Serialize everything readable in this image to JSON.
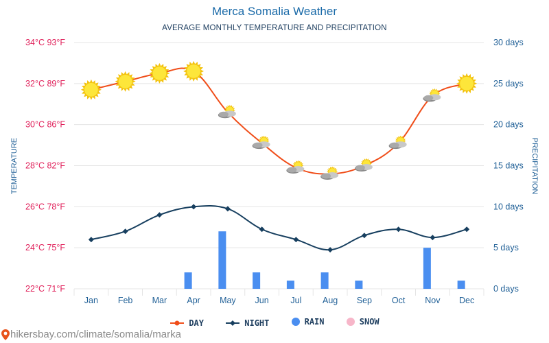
{
  "title": "Merca Somalia Weather",
  "subtitle": "AVERAGE MONTHLY TEMPERATURE AND PRECIPITATION",
  "footer": "hikersbay.com/climate/somalia/marka",
  "colors": {
    "day": "#f04e1a",
    "night": "#173f5f",
    "rain": "#4a8ef0",
    "snow": "#f7b6c9",
    "left_axis": "#e0205a",
    "right_axis": "#1f5f96",
    "grid": "#e4e4e4",
    "title": "#1a6aa8"
  },
  "legend": [
    {
      "label": "DAY",
      "key": "day",
      "marker": "line-dot"
    },
    {
      "label": "NIGHT",
      "key": "night",
      "marker": "line-diamond"
    },
    {
      "label": "RAIN",
      "key": "rain",
      "marker": "circle"
    },
    {
      "label": "SNOW",
      "key": "snow",
      "marker": "circle"
    }
  ],
  "chart_data": {
    "type": "line",
    "categories": [
      "Jan",
      "Feb",
      "Mar",
      "Apr",
      "May",
      "Jun",
      "Jul",
      "Aug",
      "Sep",
      "Oct",
      "Nov",
      "Dec"
    ],
    "series": [
      {
        "name": "DAY",
        "axis": "left",
        "values": [
          31.7,
          32.1,
          32.5,
          32.6,
          30.6,
          29.1,
          27.9,
          27.6,
          28.0,
          29.1,
          31.4,
          32.0
        ]
      },
      {
        "name": "NIGHT",
        "axis": "left",
        "values": [
          24.4,
          24.8,
          25.6,
          26.0,
          25.9,
          24.9,
          24.4,
          23.9,
          24.6,
          24.9,
          24.5,
          24.9
        ]
      },
      {
        "name": "RAIN",
        "axis": "right",
        "type": "bar",
        "values": [
          0,
          0,
          0,
          2,
          7,
          2,
          1,
          2,
          1,
          0,
          5,
          1
        ]
      },
      {
        "name": "SNOW",
        "axis": "right",
        "type": "bar",
        "values": [
          0,
          0,
          0,
          0,
          0,
          0,
          0,
          0,
          0,
          0,
          0,
          0
        ]
      }
    ],
    "weather_icons": [
      "sun",
      "sun",
      "sun",
      "sun",
      "partly-cloudy",
      "partly-cloudy",
      "partly-cloudy",
      "partly-cloudy",
      "partly-cloudy",
      "partly-cloudy",
      "partly-cloudy",
      "sun"
    ],
    "left_axis": {
      "label": "TEMPERATURE",
      "ylim": [
        22,
        34
      ],
      "ticks": [
        "22°C 71°F",
        "24°C 75°F",
        "26°C 78°F",
        "28°C 82°F",
        "30°C 86°F",
        "32°C 89°F",
        "34°C 93°F"
      ]
    },
    "right_axis": {
      "label": "PRECIPITATION",
      "ylim": [
        0,
        30
      ],
      "ticks": [
        "0 days",
        "5 days",
        "10 days",
        "15 days",
        "20 days",
        "25 days",
        "30 days"
      ]
    },
    "grid": true,
    "legend_position": "bottom-center"
  }
}
